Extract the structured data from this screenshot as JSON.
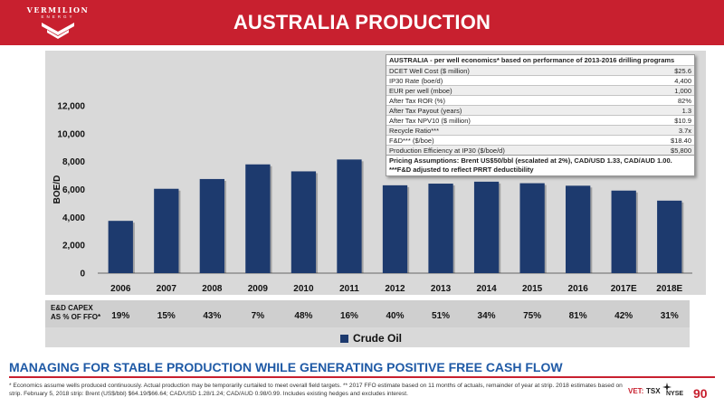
{
  "header": {
    "logo_word": "VERMILION",
    "logo_sub": "ENERGY",
    "title": "AUSTRALIA PRODUCTION"
  },
  "chart_data": {
    "type": "bar",
    "categories": [
      "2006",
      "2007",
      "2008",
      "2009",
      "2010",
      "2011",
      "2012",
      "2013",
      "2014",
      "2015",
      "2016",
      "2017E",
      "2018E"
    ],
    "series": [
      {
        "name": "Crude Oil",
        "values": [
          3750,
          6050,
          6750,
          7800,
          7300,
          8150,
          6300,
          6420,
          6560,
          6450,
          6270,
          5920,
          5200
        ]
      }
    ],
    "ylabel": "BOE/D",
    "xlabel": "",
    "ylim": [
      0,
      12000
    ],
    "yticks": [
      0,
      2000,
      4000,
      6000,
      8000,
      10000,
      12000
    ],
    "ytick_labels": [
      "0",
      "2,000",
      "4,000",
      "6,000",
      "8,000",
      "10,000",
      "12,000"
    ],
    "grid": false,
    "legend": "bottom",
    "bar_color": "#1d3a6e"
  },
  "capex": {
    "label_line1": "E&D CAPEX",
    "label_line2": "AS % OF FFO*",
    "values": [
      "19%",
      "15%",
      "43%",
      "7%",
      "48%",
      "16%",
      "40%",
      "51%",
      "34%",
      "75%",
      "81%",
      "42%",
      "31%"
    ]
  },
  "economics": {
    "title": "AUSTRALIA - per well economics* based on performance of 2013-2016 drilling programs",
    "rows": [
      {
        "label": "DCET Well Cost ($ million)",
        "value": "$25.6"
      },
      {
        "label": "IP30 Rate (boe/d)",
        "value": "4,400"
      },
      {
        "label": "EUR per well (mboe)",
        "value": "1,000"
      },
      {
        "label": "After Tax ROR (%)",
        "value": "82%"
      },
      {
        "label": "After Tax Payout (years)",
        "value": "1.3"
      },
      {
        "label": "After Tax NPV10 ($ million)",
        "value": "$10.9"
      },
      {
        "label": "Recycle Ratio***",
        "value": "3.7x"
      },
      {
        "label": "F&D*** ($/boe)",
        "value": "$18.40"
      },
      {
        "label": "Production Efficiency at IP30 ($/boe/d)",
        "value": "$5,800"
      }
    ],
    "note1": "Pricing Assumptions: Brent US$50/bbl (escalated at 2%), CAD/USD 1.33, CAD/AUD 1.00.",
    "note2": "***F&D adjusted to reflect PRRT deductibility"
  },
  "subtitle": "MANAGING FOR STABLE PRODUCTION WHILE GENERATING POSITIVE FREE CASH FLOW",
  "footnote": "* Economics assume wells produced continuously.  Actual production may be temporarily curtailed to meet overall field targets. ** 2017 FFO estimate based on 11 months of actuals, remainder of year at strip. 2018 estimates based on strip. February 5, 2018 strip: Brent (US$/bbl) $64.19/$66.64; CAD/USD 1.28/1.24; CAD/AUD 0.98/0.99. Includes existing hedges and excludes interest.",
  "exchanges": {
    "vet": "VET:",
    "tsx": "TSX",
    "nyse": "NYSE"
  },
  "page_number": "90",
  "colors": {
    "brand_red": "#c8202f",
    "subtitle_blue": "#1f5aa6"
  }
}
